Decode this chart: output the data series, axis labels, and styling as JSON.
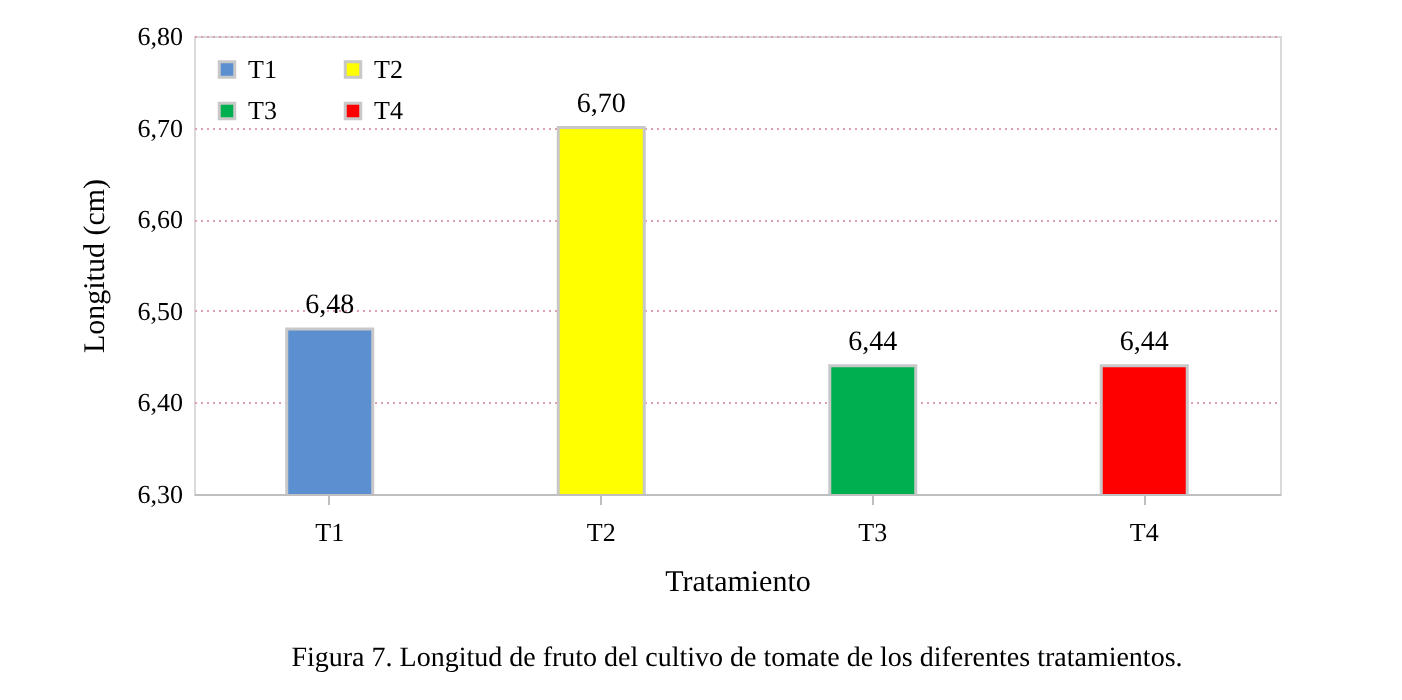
{
  "chart_data": {
    "type": "bar",
    "xlabel": "Tratamiento",
    "ylabel": "Longitud (cm)",
    "categories": [
      "T1",
      "T2",
      "T3",
      "T4"
    ],
    "series": [
      {
        "name": "T1",
        "color": "#5b8fd0",
        "values": [
          6.48,
          null,
          null,
          null
        ],
        "value_labels": [
          "6,48",
          null,
          null,
          null
        ]
      },
      {
        "name": "T2",
        "color": "#ffff00",
        "values": [
          null,
          6.7,
          null,
          null
        ],
        "value_labels": [
          null,
          "6,70",
          null,
          null
        ]
      },
      {
        "name": "T3",
        "color": "#00b050",
        "values": [
          null,
          null,
          6.44,
          null
        ],
        "value_labels": [
          null,
          null,
          "6,44",
          null
        ]
      },
      {
        "name": "T4",
        "color": "#ff0000",
        "values": [
          null,
          null,
          null,
          6.44
        ],
        "value_labels": [
          null,
          null,
          null,
          "6,44"
        ]
      }
    ],
    "ylim": [
      6.3,
      6.8
    ],
    "yticks": [
      {
        "value": 6.3,
        "label": "6,30"
      },
      {
        "value": 6.4,
        "label": "6,40"
      },
      {
        "value": 6.5,
        "label": "6,50"
      },
      {
        "value": 6.6,
        "label": "6,60"
      },
      {
        "value": 6.7,
        "label": "6,70"
      },
      {
        "value": 6.8,
        "label": "6,80"
      }
    ],
    "grid": "y",
    "legend": "top left",
    "annotations": [
      "Figura 7. Longitud de fruto del cultivo de tomate de los diferentes tratamientos."
    ]
  }
}
